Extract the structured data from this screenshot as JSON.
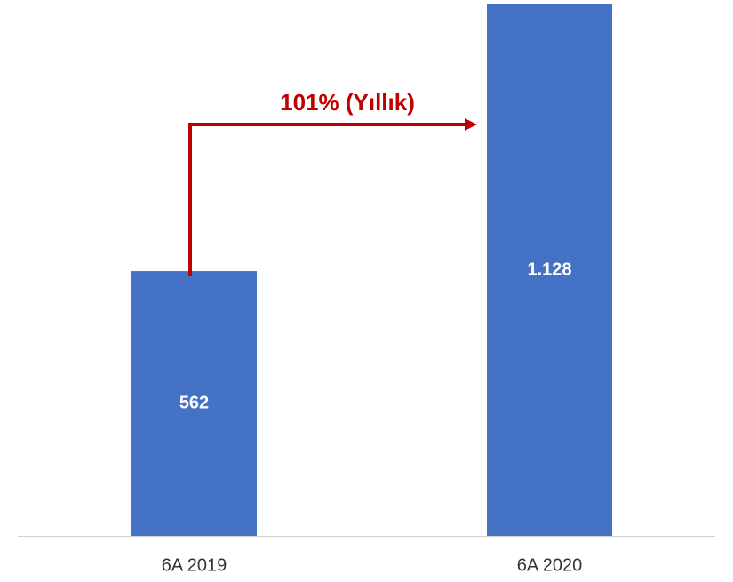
{
  "chart_data": {
    "type": "bar",
    "categories": [
      "6A 2019",
      "6A 2020"
    ],
    "values": [
      562,
      1128
    ],
    "value_labels": [
      "562",
      "1.128"
    ],
    "color": "#4472c4",
    "annotation": "101% (Yıllık)",
    "annotation_color": "#c00000"
  }
}
